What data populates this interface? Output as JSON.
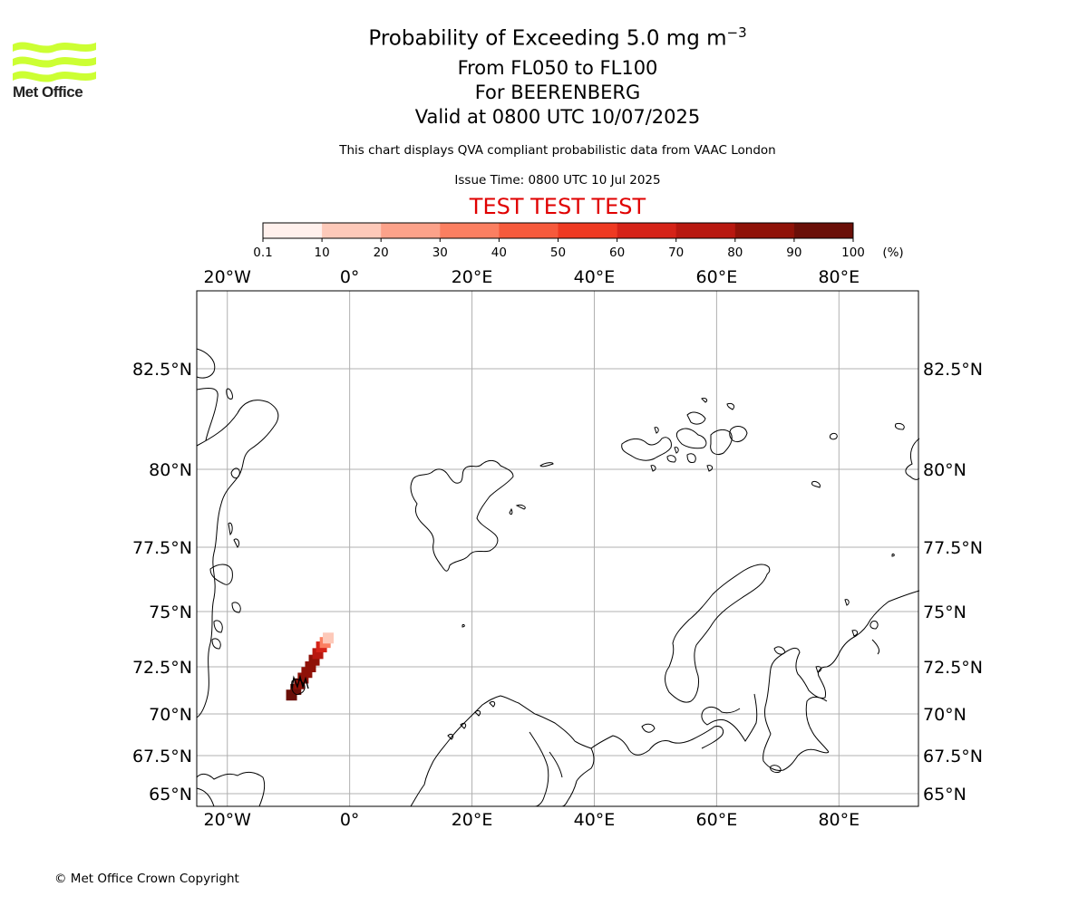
{
  "logo": {
    "text": "Met Office",
    "color": "#ccff33"
  },
  "title": {
    "main": "Probability of Exceeding 5.0 mg m",
    "main_sup": "−3",
    "flight_levels": "From FL050 to FL100",
    "volcano": "For BEERENBERG",
    "valid": "Valid at 0800 UTC 10/07/2025"
  },
  "subtitle": "This chart displays QVA compliant probabilistic data from VAAC London",
  "issue_time": "Issue Time: 0800 UTC 10 Jul 2025",
  "test_banner": "TEST TEST TEST",
  "colorbar": {
    "ticks": [
      "0.1",
      "10",
      "20",
      "30",
      "40",
      "50",
      "60",
      "70",
      "80",
      "90",
      "100"
    ],
    "unit": "(%)",
    "colors": [
      "#fff0ec",
      "#fdc9b9",
      "#fca28a",
      "#fb7f61",
      "#f65a3c",
      "#ee3a22",
      "#d52318",
      "#b81810",
      "#8f1208",
      "#6a0f08"
    ]
  },
  "map": {
    "lon_ticks": [
      "20°W",
      "0°",
      "20°E",
      "40°E",
      "60°E",
      "80°E"
    ],
    "lon_values": [
      -20,
      0,
      20,
      40,
      60,
      80
    ],
    "lat_ticks": [
      "82.5°N",
      "80°N",
      "77.5°N",
      "75°N",
      "72.5°N",
      "70°N",
      "67.5°N",
      "65°N"
    ],
    "lat_values": [
      82.5,
      80,
      77.5,
      75,
      72.5,
      70,
      67.5,
      65
    ],
    "extent": {
      "lon_min": -25,
      "lon_max": 93,
      "lat_min": 64.7,
      "lat_max": 85
    },
    "volcano_name": "BEERENBERG",
    "plume_probability_pct": [
      [
        -9.5,
        71.0,
        90
      ],
      [
        -8.8,
        71.3,
        90
      ],
      [
        -8.2,
        71.6,
        85
      ],
      [
        -7.6,
        71.9,
        85
      ],
      [
        -7.0,
        72.2,
        85
      ],
      [
        -6.4,
        72.5,
        80
      ],
      [
        -5.8,
        72.8,
        80
      ],
      [
        -5.2,
        73.1,
        75
      ],
      [
        -4.6,
        73.4,
        60
      ],
      [
        -4.0,
        73.6,
        35
      ],
      [
        -3.5,
        73.8,
        15
      ]
    ]
  },
  "copyright": "© Met Office Crown Copyright"
}
